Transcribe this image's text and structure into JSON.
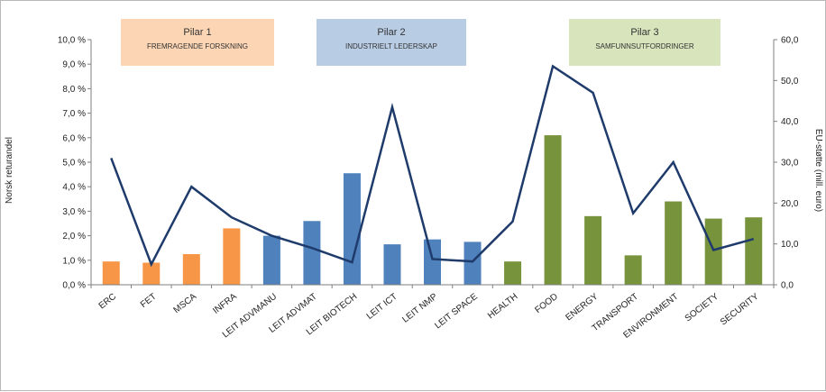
{
  "chart_data": {
    "type": "bar",
    "categories": [
      "ERC",
      "FET",
      "MSCA",
      "INFRA",
      "LEIT ADVMANU",
      "LEIT ADVMAT",
      "LEIT BIOTECH",
      "LEIT ICT",
      "LEIT NMP",
      "LEIT SPACE",
      "HEALTH",
      "FOOD",
      "ENERGY",
      "TRANSPORT",
      "ENVIRONMENT",
      "SOCIETY",
      "SECURITY"
    ],
    "bar_pillar": [
      1,
      1,
      1,
      1,
      2,
      2,
      2,
      2,
      2,
      2,
      3,
      3,
      3,
      3,
      3,
      3,
      3
    ],
    "bar_values": [
      0.95,
      0.9,
      1.25,
      2.3,
      2.0,
      2.6,
      4.55,
      1.65,
      1.85,
      1.75,
      0.95,
      6.1,
      2.8,
      1.2,
      3.4,
      2.7,
      2.75
    ],
    "line_values": [
      31.0,
      5.0,
      24.0,
      16.5,
      12.0,
      9.0,
      5.5,
      43.5,
      6.3,
      5.7,
      15.5,
      53.5,
      47.0,
      17.5,
      30.0,
      8.5,
      11.2
    ],
    "ylabel_left": "Norsk returandel",
    "ylabel_right": "EU-støtte (mill. euro)",
    "y_left_ticks": [
      "0,0 %",
      "1,0 %",
      "2,0 %",
      "3,0 %",
      "4,0 %",
      "5,0 %",
      "6,0 %",
      "7,0 %",
      "8,0 %",
      "9,0 %",
      "10,0 %"
    ],
    "y_right_ticks": [
      "0,0",
      "10,0",
      "20,0",
      "30,0",
      "40,0",
      "50,0",
      "60,0"
    ],
    "ylim_left": [
      0,
      10
    ],
    "ylim_right": [
      0,
      60
    ],
    "grid": false,
    "colors": {
      "pillar1": "#f79646",
      "pillar2": "#4f81bd",
      "pillar3": "#77933c",
      "line": "#1f3b6b",
      "axis": "#7f7f7f"
    },
    "pillars": [
      {
        "title": "Pilar 1",
        "subtitle": "FREMRAGENDE FORSKNING",
        "fill": "#fcd5b4"
      },
      {
        "title": "Pilar 2",
        "subtitle": "INDUSTRIELT LEDERSKAP",
        "fill": "#b8cce4"
      },
      {
        "title": "Pilar 3",
        "subtitle": "SAMFUNNSUTFORDRINGER",
        "fill": "#d7e4bc"
      }
    ]
  }
}
